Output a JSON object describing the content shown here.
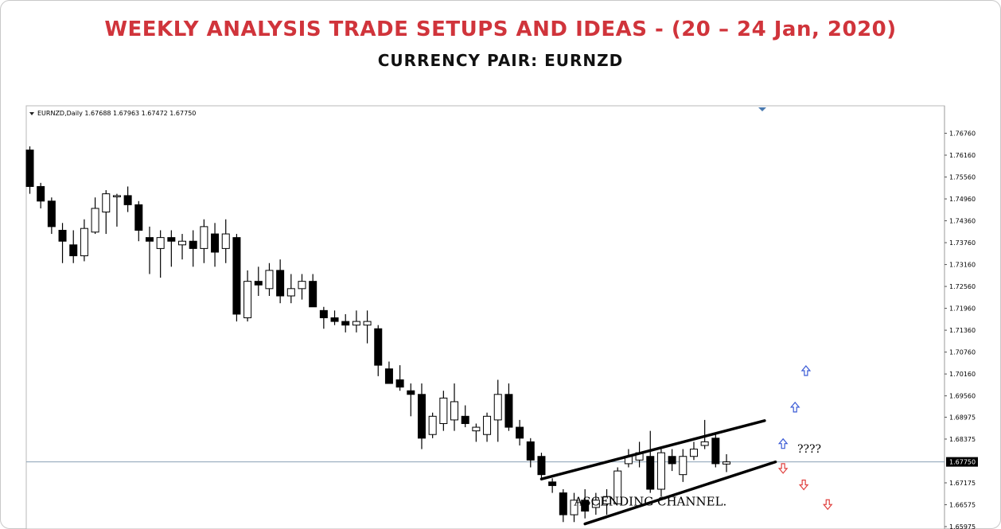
{
  "header": {
    "title": "WEEKLY ANALYSIS TRADE SETUPS AND IDEAS - (20 – 24 Jan, 2020)",
    "subtitle": "CURRENCY PAIR: EURNZD"
  },
  "chart_data": {
    "type": "candlestick",
    "info_label": "EURNZD,Daily 1.67688 1.67963 1.67472 1.67750",
    "current_price": 1.6775,
    "current_price_label": "1.67750",
    "ylim": [
      1.65975,
      1.7736
    ],
    "y_ticks": [
      "1.76760",
      "1.76160",
      "1.75560",
      "1.74960",
      "1.74360",
      "1.73760",
      "1.73160",
      "1.72560",
      "1.71960",
      "1.71360",
      "1.70760",
      "1.70160",
      "1.69560",
      "1.68975",
      "1.68375",
      "1.67750",
      "1.67175",
      "1.66575",
      "1.65975"
    ],
    "grid": false,
    "candle_up_color": "#ffffff",
    "candle_down_color": "#000000",
    "candles": [
      {
        "open": 1.763,
        "high": 1.764,
        "low": 1.751,
        "close": 1.753
      },
      {
        "open": 1.753,
        "high": 1.754,
        "low": 1.747,
        "close": 1.749
      },
      {
        "open": 1.749,
        "high": 1.75,
        "low": 1.74,
        "close": 1.742
      },
      {
        "open": 1.741,
        "high": 1.743,
        "low": 1.732,
        "close": 1.738
      },
      {
        "open": 1.737,
        "high": 1.741,
        "low": 1.732,
        "close": 1.734
      },
      {
        "open": 1.734,
        "high": 1.744,
        "low": 1.7325,
        "close": 1.7415
      },
      {
        "open": 1.7405,
        "high": 1.75,
        "low": 1.74,
        "close": 1.747
      },
      {
        "open": 1.746,
        "high": 1.752,
        "low": 1.74,
        "close": 1.751
      },
      {
        "open": 1.7505,
        "high": 1.751,
        "low": 1.742,
        "close": 1.7505
      },
      {
        "open": 1.7505,
        "high": 1.753,
        "low": 1.746,
        "close": 1.748
      },
      {
        "open": 1.748,
        "high": 1.749,
        "low": 1.738,
        "close": 1.741
      },
      {
        "open": 1.739,
        "high": 1.742,
        "low": 1.729,
        "close": 1.738
      },
      {
        "open": 1.736,
        "high": 1.741,
        "low": 1.728,
        "close": 1.739
      },
      {
        "open": 1.739,
        "high": 1.741,
        "low": 1.731,
        "close": 1.738
      },
      {
        "open": 1.737,
        "high": 1.74,
        "low": 1.733,
        "close": 1.738
      },
      {
        "open": 1.738,
        "high": 1.741,
        "low": 1.731,
        "close": 1.736
      },
      {
        "open": 1.736,
        "high": 1.744,
        "low": 1.732,
        "close": 1.742
      },
      {
        "open": 1.74,
        "high": 1.743,
        "low": 1.731,
        "close": 1.735
      },
      {
        "open": 1.736,
        "high": 1.744,
        "low": 1.732,
        "close": 1.74
      },
      {
        "open": 1.739,
        "high": 1.74,
        "low": 1.716,
        "close": 1.718
      },
      {
        "open": 1.717,
        "high": 1.73,
        "low": 1.716,
        "close": 1.727
      },
      {
        "open": 1.727,
        "high": 1.731,
        "low": 1.723,
        "close": 1.726
      },
      {
        "open": 1.725,
        "high": 1.732,
        "low": 1.723,
        "close": 1.73
      },
      {
        "open": 1.73,
        "high": 1.733,
        "low": 1.721,
        "close": 1.723
      },
      {
        "open": 1.723,
        "high": 1.729,
        "low": 1.721,
        "close": 1.725
      },
      {
        "open": 1.725,
        "high": 1.729,
        "low": 1.722,
        "close": 1.727
      },
      {
        "open": 1.727,
        "high": 1.729,
        "low": 1.72,
        "close": 1.72
      },
      {
        "open": 1.719,
        "high": 1.72,
        "low": 1.714,
        "close": 1.717
      },
      {
        "open": 1.717,
        "high": 1.719,
        "low": 1.715,
        "close": 1.716
      },
      {
        "open": 1.716,
        "high": 1.718,
        "low": 1.713,
        "close": 1.715
      },
      {
        "open": 1.715,
        "high": 1.719,
        "low": 1.713,
        "close": 1.716
      },
      {
        "open": 1.715,
        "high": 1.719,
        "low": 1.71,
        "close": 1.716
      },
      {
        "open": 1.714,
        "high": 1.715,
        "low": 1.701,
        "close": 1.704
      },
      {
        "open": 1.703,
        "high": 1.705,
        "low": 1.699,
        "close": 1.699
      },
      {
        "open": 1.7,
        "high": 1.704,
        "low": 1.697,
        "close": 1.698
      },
      {
        "open": 1.697,
        "high": 1.699,
        "low": 1.69,
        "close": 1.696
      },
      {
        "open": 1.696,
        "high": 1.699,
        "low": 1.681,
        "close": 1.684
      },
      {
        "open": 1.685,
        "high": 1.691,
        "low": 1.684,
        "close": 1.69
      },
      {
        "open": 1.688,
        "high": 1.697,
        "low": 1.686,
        "close": 1.695
      },
      {
        "open": 1.689,
        "high": 1.699,
        "low": 1.686,
        "close": 1.694
      },
      {
        "open": 1.69,
        "high": 1.693,
        "low": 1.687,
        "close": 1.688
      },
      {
        "open": 1.686,
        "high": 1.688,
        "low": 1.683,
        "close": 1.687
      },
      {
        "open": 1.685,
        "high": 1.691,
        "low": 1.683,
        "close": 1.69
      },
      {
        "open": 1.689,
        "high": 1.7,
        "low": 1.683,
        "close": 1.696
      },
      {
        "open": 1.696,
        "high": 1.699,
        "low": 1.686,
        "close": 1.687
      },
      {
        "open": 1.687,
        "high": 1.689,
        "low": 1.682,
        "close": 1.684
      },
      {
        "open": 1.683,
        "high": 1.684,
        "low": 1.676,
        "close": 1.678
      },
      {
        "open": 1.679,
        "high": 1.68,
        "low": 1.673,
        "close": 1.674
      },
      {
        "open": 1.672,
        "high": 1.673,
        "low": 1.669,
        "close": 1.671
      },
      {
        "open": 1.669,
        "high": 1.67,
        "low": 1.661,
        "close": 1.663
      },
      {
        "open": 1.663,
        "high": 1.669,
        "low": 1.661,
        "close": 1.667
      },
      {
        "open": 1.667,
        "high": 1.67,
        "low": 1.662,
        "close": 1.664
      },
      {
        "open": 1.665,
        "high": 1.669,
        "low": 1.663,
        "close": 1.667
      },
      {
        "open": 1.666,
        "high": 1.67,
        "low": 1.663,
        "close": 1.668
      },
      {
        "open": 1.666,
        "high": 1.676,
        "low": 1.666,
        "close": 1.675
      },
      {
        "open": 1.677,
        "high": 1.681,
        "low": 1.676,
        "close": 1.679
      },
      {
        "open": 1.678,
        "high": 1.683,
        "low": 1.676,
        "close": 1.68
      },
      {
        "open": 1.679,
        "high": 1.686,
        "low": 1.669,
        "close": 1.67
      },
      {
        "open": 1.67,
        "high": 1.681,
        "low": 1.668,
        "close": 1.68
      },
      {
        "open": 1.679,
        "high": 1.681,
        "low": 1.675,
        "close": 1.677
      },
      {
        "open": 1.674,
        "high": 1.681,
        "low": 1.672,
        "close": 1.679
      },
      {
        "open": 1.679,
        "high": 1.683,
        "low": 1.678,
        "close": 1.681
      },
      {
        "open": 1.682,
        "high": 1.689,
        "low": 1.681,
        "close": 1.683
      },
      {
        "open": 1.684,
        "high": 1.685,
        "low": 1.676,
        "close": 1.677
      },
      {
        "open": 1.6769,
        "high": 1.6796,
        "low": 1.6747,
        "close": 1.6775
      }
    ],
    "trendlines": [
      {
        "name": "upper",
        "start": {
          "index": 47,
          "price": 1.6728
        },
        "end": {
          "index": 67.5,
          "price": 1.6888
        }
      },
      {
        "name": "lower",
        "start": {
          "index": 51,
          "price": 1.6605
        },
        "end": {
          "index": 68.5,
          "price": 1.6775
        }
      }
    ],
    "annotations": [
      {
        "text": "ASCENDING CHANNEL.",
        "index": 50,
        "price": 1.6655
      },
      {
        "text": "????",
        "index": 70.5,
        "price": 1.68
      }
    ],
    "arrows": [
      {
        "direction": "up",
        "color": "#3b5bd6",
        "index": 69.2,
        "price": 1.6825
      },
      {
        "direction": "up",
        "color": "#3b5bd6",
        "index": 70.3,
        "price": 1.6925
      },
      {
        "direction": "up",
        "color": "#3b5bd6",
        "index": 71.3,
        "price": 1.7025
      },
      {
        "direction": "down",
        "color": "#e0413f",
        "index": 69.2,
        "price": 1.6757
      },
      {
        "direction": "down",
        "color": "#e0413f",
        "index": 71.1,
        "price": 1.6712
      },
      {
        "direction": "down",
        "color": "#e0413f",
        "index": 73.3,
        "price": 1.6658
      }
    ]
  }
}
